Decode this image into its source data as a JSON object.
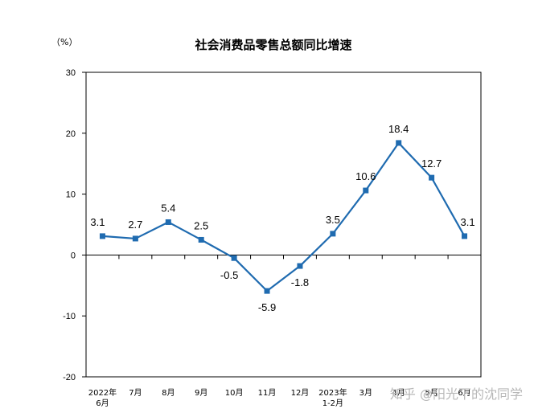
{
  "chart_data": {
    "type": "line",
    "title": "社会消费品零售总额同比增速",
    "unit": "（%）",
    "categories": [
      [
        "2022年",
        "6月"
      ],
      [
        "7月"
      ],
      [
        "8月"
      ],
      [
        "9月"
      ],
      [
        "10月"
      ],
      [
        "11月"
      ],
      [
        "12月"
      ],
      [
        "2023年",
        "1-2月"
      ],
      [
        "3月"
      ],
      [
        "4月"
      ],
      [
        "5月"
      ],
      [
        "6月"
      ]
    ],
    "series": [
      {
        "values": [
          3.1,
          2.7,
          5.4,
          2.5,
          -0.5,
          -5.9,
          -1.8,
          3.5,
          10.6,
          18.4,
          12.7,
          3.1
        ]
      }
    ],
    "data_labels": [
      "3.1",
      "2.7",
      "5.4",
      "2.5",
      "-0.5",
      "-5.9",
      "-1.8",
      "3.5",
      "10.6",
      "18.4",
      "12.7",
      "3.1"
    ],
    "ylim": [
      -20,
      30
    ],
    "yticks": [
      30,
      20,
      10,
      0,
      -10,
      -20
    ],
    "grid": false,
    "legend": "none",
    "line_color": "#1f6bb0"
  },
  "watermark": "知乎 @阳光下的沈同学"
}
